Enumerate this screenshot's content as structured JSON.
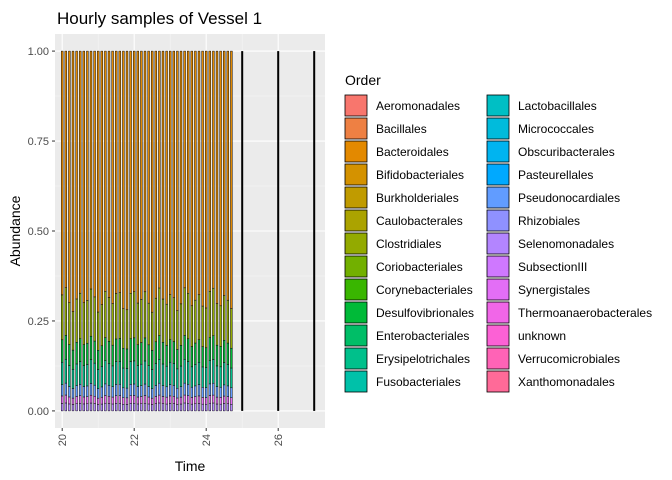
{
  "chart_data": {
    "type": "bar",
    "title": "Hourly samples of Vessel 1",
    "xlabel": "Time",
    "ylabel": "Abundance",
    "xlim": [
      19.8,
      27.3
    ],
    "ylim": [
      -0.0475,
      1.0475
    ],
    "x_ticks": [
      20,
      22,
      24,
      26
    ],
    "y_ticks": [
      0.0,
      0.25,
      0.5,
      0.75,
      1.0
    ],
    "y_tick_labels": [
      "0.00",
      "0.25",
      "0.50",
      "0.75",
      "1.00"
    ],
    "stacked": true,
    "dense_sample_range": [
      20.0,
      24.7
    ],
    "dense_sample_step": 0.1,
    "isolated_sample_times": [
      25.0,
      26.0,
      27.0
    ],
    "approx_composition": [
      {
        "name": "Selenomonadales",
        "share": 0.02
      },
      {
        "name": "Synergistales",
        "share": 0.02
      },
      {
        "name": "Pseudonocardiales",
        "share": 0.03
      },
      {
        "name": "Erysipelotrichales",
        "share": 0.06
      },
      {
        "name": "Desulfovibrionales",
        "share": 0.06
      },
      {
        "name": "Clostridiales",
        "share": 0.12
      },
      {
        "name": "Bacteroidales",
        "share": 0.69
      }
    ],
    "grid": true,
    "legend_position": "right"
  },
  "legend": {
    "title": "Order",
    "columns": [
      [
        {
          "label": "Aeromonadales",
          "color": "#F8766D"
        },
        {
          "label": "Bacillales",
          "color": "#EE8043"
        },
        {
          "label": "Bacteroidales",
          "color": "#E38900"
        },
        {
          "label": "Bifidobacteriales",
          "color": "#D49200"
        },
        {
          "label": "Burkholderiales",
          "color": "#C09B00"
        },
        {
          "label": "Caulobacterales",
          "color": "#ABA300"
        },
        {
          "label": "Clostridiales",
          "color": "#93AA00"
        },
        {
          "label": "Coriobacteriales",
          "color": "#72B000"
        },
        {
          "label": "Corynebacteriales",
          "color": "#39B600"
        },
        {
          "label": "Desulfovibrionales",
          "color": "#00BA38"
        },
        {
          "label": "Enterobacteriales",
          "color": "#00BE67"
        },
        {
          "label": "Erysipelotrichales",
          "color": "#00C08B"
        },
        {
          "label": "Fusobacteriales",
          "color": "#00C1A9"
        }
      ],
      [
        {
          "label": "Lactobacillales",
          "color": "#00BFC4"
        },
        {
          "label": "Micrococcales",
          "color": "#00BBDC"
        },
        {
          "label": "Obscuribacterales",
          "color": "#00B4F0"
        },
        {
          "label": "Pasteurellales",
          "color": "#00A9FF"
        },
        {
          "label": "Pseudonocardiales",
          "color": "#619CFF"
        },
        {
          "label": "Rhizobiales",
          "color": "#8F91FF"
        },
        {
          "label": "Selenomonadales",
          "color": "#B385FF"
        },
        {
          "label": "SubsectionIII",
          "color": "#CF78FF"
        },
        {
          "label": "Synergistales",
          "color": "#E36EF6"
        },
        {
          "label": "Thermoanaerobacterales",
          "color": "#F166E8"
        },
        {
          "label": "unknown",
          "color": "#FC61D5"
        },
        {
          "label": "Verrucomicrobiales",
          "color": "#FF63B6"
        },
        {
          "label": "Xanthomonadales",
          "color": "#FF6A98"
        }
      ]
    ]
  },
  "colors": {
    "panel_background": "#EBEBEB",
    "grid_major": "#FFFFFF",
    "bar_outline": "#000000",
    "text": "#000000",
    "tick_text": "#4D4D4D"
  }
}
